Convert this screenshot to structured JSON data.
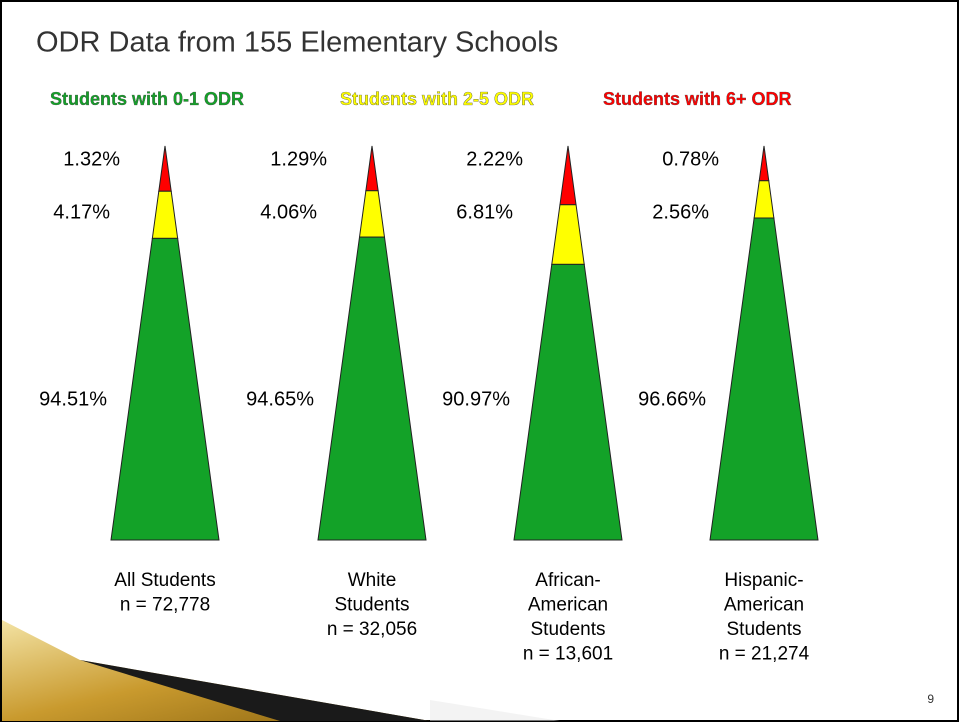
{
  "chart_data": {
    "type": "triangle",
    "title": "ODR Data from 155 Elementary Schools",
    "series": [
      {
        "name": "Students with 0-1 ODR",
        "color": "#13a228",
        "values": [
          94.51,
          94.65,
          90.97,
          96.66
        ],
        "value_labels": [
          "94.51%",
          "94.65%",
          "90.97%",
          "96.66%"
        ]
      },
      {
        "name": "Students with 2-5 ODR",
        "color": "#ffff00",
        "values": [
          4.17,
          4.06,
          6.81,
          2.56
        ],
        "value_labels": [
          "4.17%",
          "4.06%",
          "6.81%",
          "2.56%"
        ]
      },
      {
        "name": "Students with 6+ ODR",
        "color": "#ff0000",
        "values": [
          1.32,
          1.29,
          2.22,
          0.78
        ],
        "value_labels": [
          "1.32%",
          "1.29%",
          "2.22%",
          "0.78%"
        ]
      }
    ],
    "categories": [
      [
        "All Students",
        "n = 72,778"
      ],
      [
        "White",
        "Students",
        "n = 32,056"
      ],
      [
        "African-",
        "American",
        "Students",
        "n = 13,601"
      ],
      [
        "Hispanic-",
        "American",
        "Students",
        "n = 21,274"
      ]
    ],
    "page_number": "9"
  }
}
